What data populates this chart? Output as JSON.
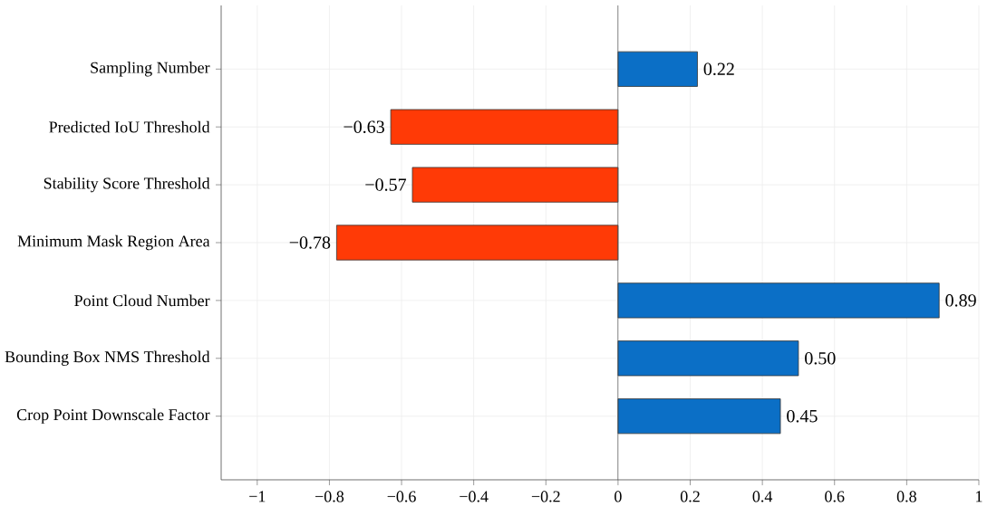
{
  "chart_data": {
    "type": "bar",
    "orientation": "horizontal",
    "categories": [
      "Sampling Number",
      "Predicted IoU Threshold",
      "Stability Score Threshold",
      "Minimum Mask Region Area",
      "Point Cloud Number",
      "Bounding Box NMS Threshold",
      "Crop Point Downscale Factor"
    ],
    "values": [
      0.22,
      -0.63,
      -0.57,
      -0.78,
      0.89,
      0.5,
      0.45
    ],
    "colors": [
      "#0b6fc6",
      "#ff3a06",
      "#ff3a06",
      "#ff3a06",
      "#0b6fc6",
      "#0b6fc6",
      "#0b6fc6"
    ],
    "value_labels": [
      "0.22",
      "−0.63",
      "−0.57",
      "−0.78",
      "0.89",
      "0.50",
      "0.45"
    ],
    "xlim": [
      -1.1,
      1
    ],
    "xticks": [
      {
        "value": -1,
        "label": "−1"
      },
      {
        "value": -0.8,
        "label": "−0.8"
      },
      {
        "value": -0.6,
        "label": "−0.6"
      },
      {
        "value": -0.4,
        "label": "−0.4"
      },
      {
        "value": -0.2,
        "label": "−0.2"
      },
      0,
      0.2,
      0.4,
      0.6,
      0.8,
      1
    ],
    "grid": true
  }
}
